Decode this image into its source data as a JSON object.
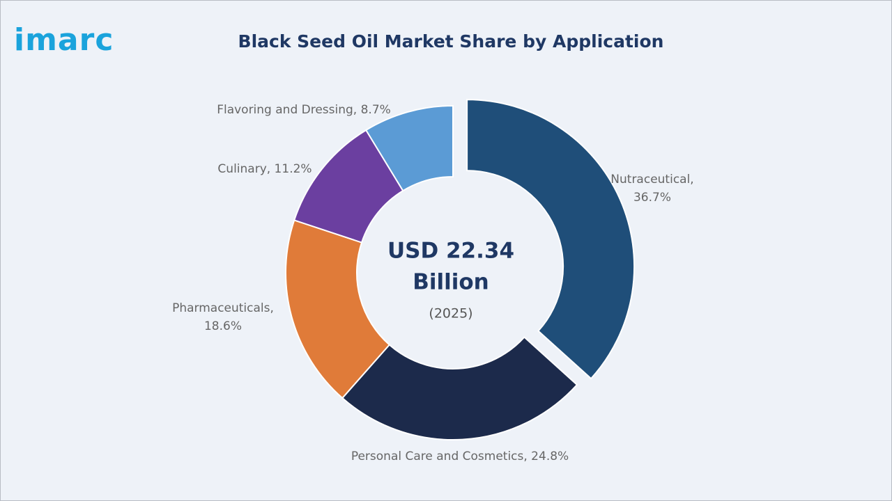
{
  "logo": "imarc",
  "chart_data": {
    "type": "donut",
    "title": "Black Seed Oil Market Share by Application",
    "center_value": "USD 22.34",
    "center_unit": "Billion",
    "center_year": "(2025)",
    "categories": [
      "Nutraceutical",
      "Personal Care and Cosmetics",
      "Pharmaceuticals",
      "Culinary",
      "Flavoring and Dressing"
    ],
    "values": [
      36.7,
      24.8,
      18.6,
      11.2,
      8.7
    ],
    "value_labels": [
      "Nutraceutical, 36.7%",
      "Personal Care and Cosmetics, 24.8%",
      "Pharmaceuticals, 18.6%",
      "Culinary, 11.2%",
      "Flavoring and Dressing, 8.7%"
    ],
    "colors": [
      "#1f4e79",
      "#1c2a4b",
      "#e07b39",
      "#6b3fa0",
      "#5b9bd5"
    ],
    "exploded": [
      true,
      false,
      false,
      false,
      false
    ]
  }
}
